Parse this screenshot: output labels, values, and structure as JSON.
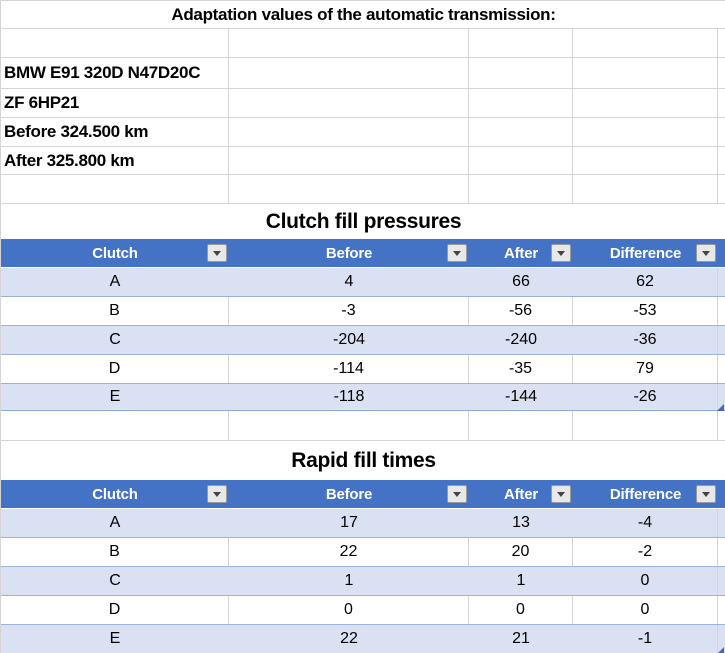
{
  "sheet": {
    "title": "Adaptation values of the automatic transmission:",
    "info": {
      "vehicle": "BMW E91 320D N47D20C",
      "transmission": "ZF 6HP21",
      "before_km": "Before 324.500 km",
      "after_km": "After 325.800 km"
    }
  },
  "tables": [
    {
      "title": "Clutch fill pressures",
      "columns": [
        "Clutch",
        "Before",
        "After",
        "Difference"
      ],
      "rows": [
        [
          "A",
          "4",
          "66",
          "62"
        ],
        [
          "B",
          "-3",
          "-56",
          "-53"
        ],
        [
          "C",
          "-204",
          "-240",
          "-36"
        ],
        [
          "D",
          "-114",
          "-35",
          "79"
        ],
        [
          "E",
          "-118",
          "-144",
          "-26"
        ]
      ]
    },
    {
      "title": "Rapid fill times",
      "columns": [
        "Clutch",
        "Before",
        "After",
        "Difference"
      ],
      "rows": [
        [
          "A",
          "17",
          "13",
          "-4"
        ],
        [
          "B",
          "22",
          "20",
          "-2"
        ],
        [
          "C",
          "1",
          "1",
          "0"
        ],
        [
          "D",
          "0",
          "0",
          "0"
        ],
        [
          "E",
          "22",
          "21",
          "-1"
        ]
      ]
    }
  ],
  "icons": {
    "filter_dropdown": "▾",
    "resize_handle": "◢"
  },
  "colors": {
    "header_bg": "#4472C4",
    "header_text": "#FFFFFF",
    "band_bg": "#D9E1F2",
    "row_line": "#9DB2D9",
    "grid_line": "#D4D4D4",
    "table_border": "#8EA9DB",
    "handle": "#3E6CB5",
    "btn_bg": "#E8E8E8",
    "btn_border": "#9A9A9A",
    "btn_arrow": "#444444",
    "text": "#000000"
  }
}
